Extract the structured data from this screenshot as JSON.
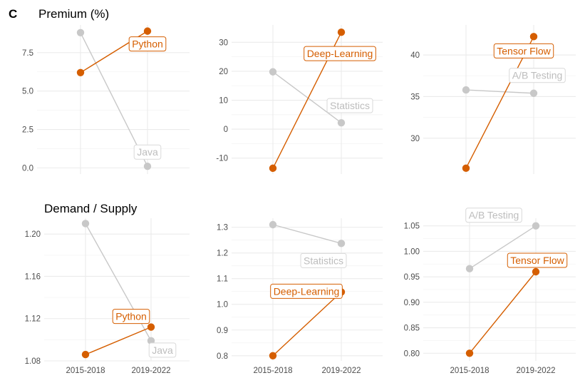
{
  "figure": {
    "panel_letter": "C",
    "row_titles": [
      "Premium (%)",
      "Demand / Supply"
    ]
  },
  "colors": {
    "highlight": "#D55E00",
    "muted": "#C8C8C8",
    "grid": "#EBEBEB",
    "label_muted_text": "#BDBDBD"
  },
  "chart_data": [
    {
      "type": "line",
      "row": "Premium (%)",
      "categories": [
        "2015-2018",
        "2019-2022"
      ],
      "ylim": [
        -0.4,
        9.3
      ],
      "yticks": [
        0.0,
        2.5,
        5.0,
        7.5
      ],
      "ytick_labels": [
        "0.0",
        "2.5",
        "5.0",
        "7.5"
      ],
      "show_xlabels": false,
      "series": [
        {
          "name": "Java",
          "values": [
            8.8,
            0.1
          ],
          "highlight": false
        },
        {
          "name": "Python",
          "values": [
            6.2,
            8.9
          ],
          "highlight": true
        }
      ]
    },
    {
      "type": "line",
      "row": "Premium (%)",
      "categories": [
        "2015-2018",
        "2019-2022"
      ],
      "ylim": [
        -15.5,
        36
      ],
      "yticks": [
        -10,
        0,
        10,
        20,
        30
      ],
      "ytick_labels": [
        "-10",
        "0",
        "10",
        "20",
        "30"
      ],
      "show_xlabels": false,
      "series": [
        {
          "name": "Statistics",
          "values": [
            19.8,
            2.2
          ],
          "highlight": false
        },
        {
          "name": "Deep-Learning",
          "values": [
            -13.5,
            33.5
          ],
          "highlight": true
        }
      ]
    },
    {
      "type": "line",
      "row": "Premium (%)",
      "categories": [
        "2015-2018",
        "2019-2022"
      ],
      "ylim": [
        25.7,
        43.6
      ],
      "yticks": [
        30,
        35,
        40
      ],
      "ytick_labels": [
        "30",
        "35",
        "40"
      ],
      "show_xlabels": false,
      "series": [
        {
          "name": "A/B Testing",
          "values": [
            35.8,
            35.4
          ],
          "highlight": false
        },
        {
          "name": "Tensor Flow",
          "values": [
            26.4,
            42.2
          ],
          "highlight": true
        }
      ]
    },
    {
      "type": "line",
      "row": "Demand / Supply",
      "categories": [
        "2015-2018",
        "2019-2022"
      ],
      "ylim": [
        1.08,
        1.215
      ],
      "yticks": [
        1.08,
        1.12,
        1.16,
        1.2
      ],
      "ytick_labels": [
        "1.08",
        "1.12",
        "1.16",
        "1.20"
      ],
      "show_xlabels": true,
      "series": [
        {
          "name": "Java",
          "values": [
            1.21,
            1.099
          ],
          "highlight": false
        },
        {
          "name": "Python",
          "values": [
            1.086,
            1.112
          ],
          "highlight": true
        }
      ]
    },
    {
      "type": "line",
      "row": "Demand / Supply",
      "categories": [
        "2015-2018",
        "2019-2022"
      ],
      "ylim": [
        0.78,
        1.335
      ],
      "yticks": [
        0.8,
        0.9,
        1.0,
        1.1,
        1.2,
        1.3
      ],
      "ytick_labels": [
        "0.8",
        "0.9",
        "1.0",
        "1.1",
        "1.2",
        "1.3"
      ],
      "show_xlabels": true,
      "series": [
        {
          "name": "Statistics",
          "values": [
            1.31,
            1.237
          ],
          "highlight": false
        },
        {
          "name": "Deep-Learning",
          "values": [
            0.8,
            1.048
          ],
          "highlight": true
        }
      ]
    },
    {
      "type": "line",
      "row": "Demand / Supply",
      "categories": [
        "2015-2018",
        "2019-2022"
      ],
      "ylim": [
        0.785,
        1.065
      ],
      "yticks": [
        0.8,
        0.85,
        0.9,
        0.95,
        1.0,
        1.05
      ],
      "ytick_labels": [
        "0.80",
        "0.85",
        "0.90",
        "0.95",
        "1.00",
        "1.05"
      ],
      "show_xlabels": true,
      "series": [
        {
          "name": "A/B Testing",
          "values": [
            0.966,
            1.05
          ],
          "highlight": false
        },
        {
          "name": "Tensor Flow",
          "values": [
            0.8,
            0.96
          ],
          "highlight": true
        }
      ]
    }
  ]
}
